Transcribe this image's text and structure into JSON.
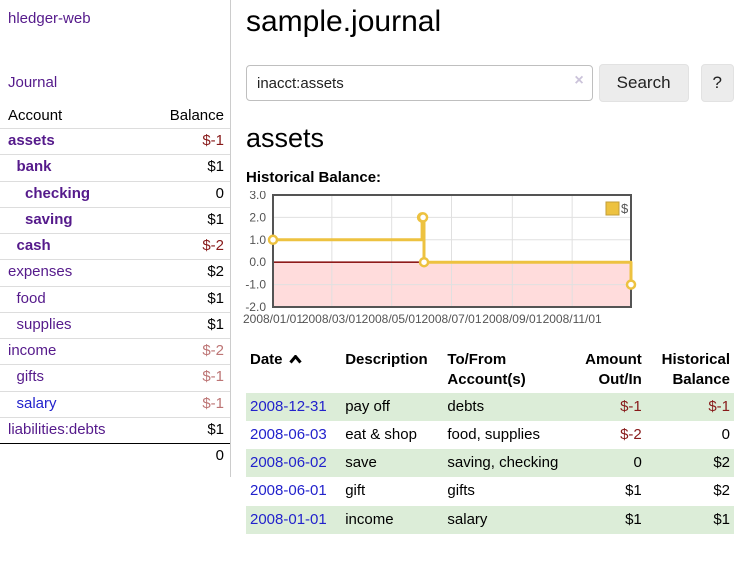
{
  "app": {
    "brand": "hledger-web"
  },
  "sidebar": {
    "nav_journal": "Journal",
    "table_headers": {
      "account": "Account",
      "balance": "Balance"
    },
    "accounts": [
      {
        "name": "assets",
        "indent": 0,
        "bold": true,
        "balance": "$-1",
        "balance_tone": "negative",
        "link_tone": "visited"
      },
      {
        "name": "bank",
        "indent": 1,
        "bold": true,
        "balance": "$1",
        "balance_tone": "normal",
        "link_tone": "visited"
      },
      {
        "name": "checking",
        "indent": 2,
        "bold": true,
        "balance": "0",
        "balance_tone": "normal",
        "link_tone": "visited"
      },
      {
        "name": "saving",
        "indent": 2,
        "bold": true,
        "balance": "$1",
        "balance_tone": "normal",
        "link_tone": "visited"
      },
      {
        "name": "cash",
        "indent": 1,
        "bold": true,
        "balance": "$-2",
        "balance_tone": "negative",
        "link_tone": "visited"
      },
      {
        "name": "expenses",
        "indent": 0,
        "bold": false,
        "balance": "$2",
        "balance_tone": "normal",
        "link_tone": "visited"
      },
      {
        "name": "food",
        "indent": 1,
        "bold": false,
        "balance": "$1",
        "balance_tone": "normal",
        "link_tone": "visited"
      },
      {
        "name": "supplies",
        "indent": 1,
        "bold": false,
        "balance": "$1",
        "balance_tone": "normal",
        "link_tone": "visited"
      },
      {
        "name": "income",
        "indent": 0,
        "bold": false,
        "balance": "$-2",
        "balance_tone": "negative-muted",
        "link_tone": "visited"
      },
      {
        "name": "gifts",
        "indent": 1,
        "bold": false,
        "balance": "$-1",
        "balance_tone": "negative-muted",
        "link_tone": "visited"
      },
      {
        "name": "salary",
        "indent": 1,
        "bold": false,
        "balance": "$-1",
        "balance_tone": "negative-muted",
        "link_tone": "unvisited"
      },
      {
        "name": "liabilities:debts",
        "indent": 0,
        "bold": false,
        "balance": "$1",
        "balance_tone": "normal",
        "link_tone": "visited"
      }
    ],
    "total": "0"
  },
  "header": {
    "title": "sample.journal"
  },
  "search": {
    "query": "inacct:assets",
    "clear_icon": "×",
    "button": "Search",
    "help_button": "?"
  },
  "account_page": {
    "heading": "assets",
    "chart_label": "Historical Balance:"
  },
  "chart_data": {
    "type": "line",
    "step": true,
    "title": "Historical Balance",
    "series": [
      {
        "name": "$",
        "color": "#edc240",
        "points": [
          [
            "2008-01-01",
            1
          ],
          [
            "2008-06-01",
            2
          ],
          [
            "2008-06-02",
            2
          ],
          [
            "2008-06-03",
            0
          ],
          [
            "2008-12-31",
            -1
          ]
        ]
      }
    ],
    "x_range": [
      "2008-01-01",
      "2008-12-31"
    ],
    "y_range": [
      -2,
      3
    ],
    "y_ticks": [
      {
        "value": 3,
        "label": "3.0"
      },
      {
        "value": 2,
        "label": "2.0"
      },
      {
        "value": 1,
        "label": "1.0"
      },
      {
        "value": 0,
        "label": "0.0"
      },
      {
        "value": -1,
        "label": "-1.0"
      },
      {
        "value": -2,
        "label": "-2.0"
      }
    ],
    "x_ticks": [
      {
        "date": "2008-01-01",
        "label": "2008/01/01"
      },
      {
        "date": "2008-03-01",
        "label": "2008/03/01"
      },
      {
        "date": "2008-05-01",
        "label": "2008/05/01"
      },
      {
        "date": "2008-07-01",
        "label": "2008/07/01"
      },
      {
        "date": "2008-09-01",
        "label": "2008/09/01"
      },
      {
        "date": "2008-11-01",
        "label": "2008/11/01"
      }
    ],
    "grid": true,
    "legend": {
      "label": "$",
      "position": "top-right"
    },
    "negative_region_color": "#ffdcdc",
    "zero_line_color": "#8e1a1a",
    "plot_border_color": "#545454",
    "grid_color": "#e0e0e0"
  },
  "transactions": {
    "headers": [
      {
        "lines": [
          "Date"
        ],
        "align": "left",
        "sort": "asc"
      },
      {
        "lines": [
          "Description"
        ],
        "align": "left"
      },
      {
        "lines": [
          "To/From",
          "Account(s)"
        ],
        "align": "left"
      },
      {
        "lines": [
          "Amount",
          "Out/In"
        ],
        "align": "right"
      },
      {
        "lines": [
          "Historical",
          "Balance"
        ],
        "align": "right"
      }
    ],
    "rows": [
      {
        "date": "2008-12-31",
        "description": "pay off",
        "accounts": "debts",
        "amount": "$-1",
        "amount_tone": "negative",
        "balance": "$-1",
        "balance_tone": "negative",
        "shaded": true
      },
      {
        "date": "2008-06-03",
        "description": "eat & shop",
        "accounts": "food, supplies",
        "amount": "$-2",
        "amount_tone": "negative",
        "balance": "0",
        "balance_tone": "normal",
        "shaded": false
      },
      {
        "date": "2008-06-02",
        "description": "save",
        "accounts": "saving, checking",
        "amount": "0",
        "amount_tone": "normal",
        "balance": "$2",
        "balance_tone": "normal",
        "shaded": true
      },
      {
        "date": "2008-06-01",
        "description": "gift",
        "accounts": "gifts",
        "amount": "$1",
        "amount_tone": "normal",
        "balance": "$2",
        "balance_tone": "normal",
        "shaded": false
      },
      {
        "date": "2008-01-01",
        "description": "income",
        "accounts": "salary",
        "amount": "$1",
        "amount_tone": "normal",
        "balance": "$1",
        "balance_tone": "normal",
        "shaded": true
      }
    ]
  },
  "colors": {
    "link_purple": "#551a8b",
    "link_blue": "#2222cc",
    "negative": "#871919",
    "negative_muted": "#bd7575",
    "row_green": "#dcedd8",
    "accent_gold": "#edc240"
  }
}
